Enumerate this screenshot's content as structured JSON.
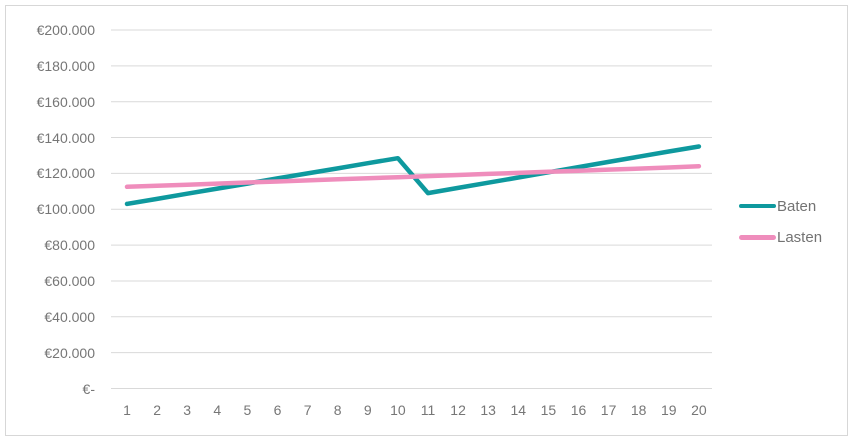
{
  "chart_data": {
    "type": "line",
    "title": "",
    "xlabel": "",
    "ylabel": "",
    "x": [
      1,
      2,
      3,
      4,
      5,
      6,
      7,
      8,
      9,
      10,
      11,
      12,
      13,
      14,
      15,
      16,
      17,
      18,
      19,
      20
    ],
    "series": [
      {
        "name": "Baten",
        "color": "#0e999e",
        "values": [
          103000,
          105800,
          108700,
          111500,
          114300,
          117200,
          120000,
          122800,
          125700,
          128500,
          109000,
          111900,
          114800,
          117700,
          120600,
          123500,
          126400,
          129300,
          132200,
          135000
        ]
      },
      {
        "name": "Lasten",
        "color": "#ef8dbc",
        "values": [
          112500,
          113100,
          113700,
          114300,
          114900,
          115500,
          116100,
          116700,
          117300,
          117900,
          118500,
          119100,
          119700,
          120300,
          120900,
          121500,
          122100,
          122700,
          123300,
          124000
        ]
      }
    ],
    "ylim": [
      0,
      200000
    ],
    "ytick_step": 20000,
    "ytick_labels_top_down": [
      "€200.000",
      "€180.000",
      "€160.000",
      "€140.000",
      "€120.000",
      "€100.000",
      "€80.000",
      "€60.000",
      "€40.000",
      "€20.000",
      "€-"
    ],
    "grid": "horizontal",
    "legend_position": "right"
  },
  "colors": {
    "gridline": "#d9d9d9",
    "frame_border": "#d7d7d7",
    "tick_text": "#767676",
    "legend_text": "#737373",
    "background": "#ffffff"
  }
}
